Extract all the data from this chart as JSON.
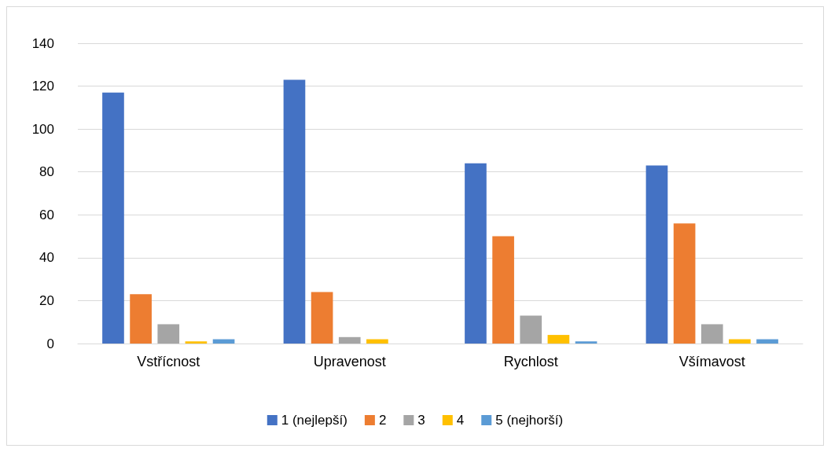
{
  "chart_data": {
    "type": "bar",
    "categories": [
      "Vstřícnost",
      "Upravenost",
      "Rychlost",
      "Všímavost"
    ],
    "series": [
      {
        "name": "1 (nejlepší)",
        "color": "#4472c4",
        "values": [
          117,
          123,
          84,
          83
        ]
      },
      {
        "name": "2",
        "color": "#ed7d31",
        "values": [
          23,
          24,
          50,
          56
        ]
      },
      {
        "name": "3",
        "color": "#a5a5a5",
        "values": [
          9,
          3,
          13,
          9
        ]
      },
      {
        "name": "4",
        "color": "#ffc000",
        "values": [
          1,
          2,
          4,
          2
        ]
      },
      {
        "name": "5 (nejhorší)",
        "color": "#5b9bd5",
        "values": [
          2,
          0,
          1,
          2
        ]
      }
    ],
    "ylim": [
      0,
      140
    ],
    "yticks": [
      0,
      20,
      40,
      60,
      80,
      100,
      120,
      140
    ],
    "grid": "y",
    "legend": "bottom"
  }
}
